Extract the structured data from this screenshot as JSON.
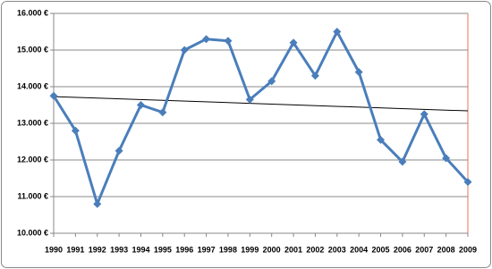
{
  "chart_data": {
    "type": "line",
    "categories": [
      "1990",
      "1991",
      "1992",
      "1993",
      "1994",
      "1995",
      "1996",
      "1997",
      "1998",
      "1999",
      "2000",
      "2001",
      "2002",
      "2003",
      "2004",
      "2005",
      "2006",
      "2007",
      "2008",
      "2009"
    ],
    "series": [
      {
        "color": "#4a7ebb",
        "values": [
          13750,
          12800,
          10800,
          12250,
          13500,
          13300,
          15000,
          15300,
          15250,
          13650,
          14150,
          15200,
          14300,
          15500,
          14400,
          12550,
          11950,
          13250,
          12050,
          11400
        ]
      }
    ],
    "trendline": {
      "color": "#000000",
      "values": [
        13730,
        13340
      ]
    },
    "ylim": [
      10000,
      16000
    ],
    "yticks": [
      {
        "value": 10000,
        "label": "10.000 €"
      },
      {
        "value": 11000,
        "label": "11.000 €"
      },
      {
        "value": 12000,
        "label": "12.000 €"
      },
      {
        "value": 13000,
        "label": "13.000 €"
      },
      {
        "value": 14000,
        "label": "14.000 €"
      },
      {
        "value": 15000,
        "label": "15.000 €"
      },
      {
        "value": 16000,
        "label": "16.000 €"
      }
    ],
    "grid": true
  }
}
